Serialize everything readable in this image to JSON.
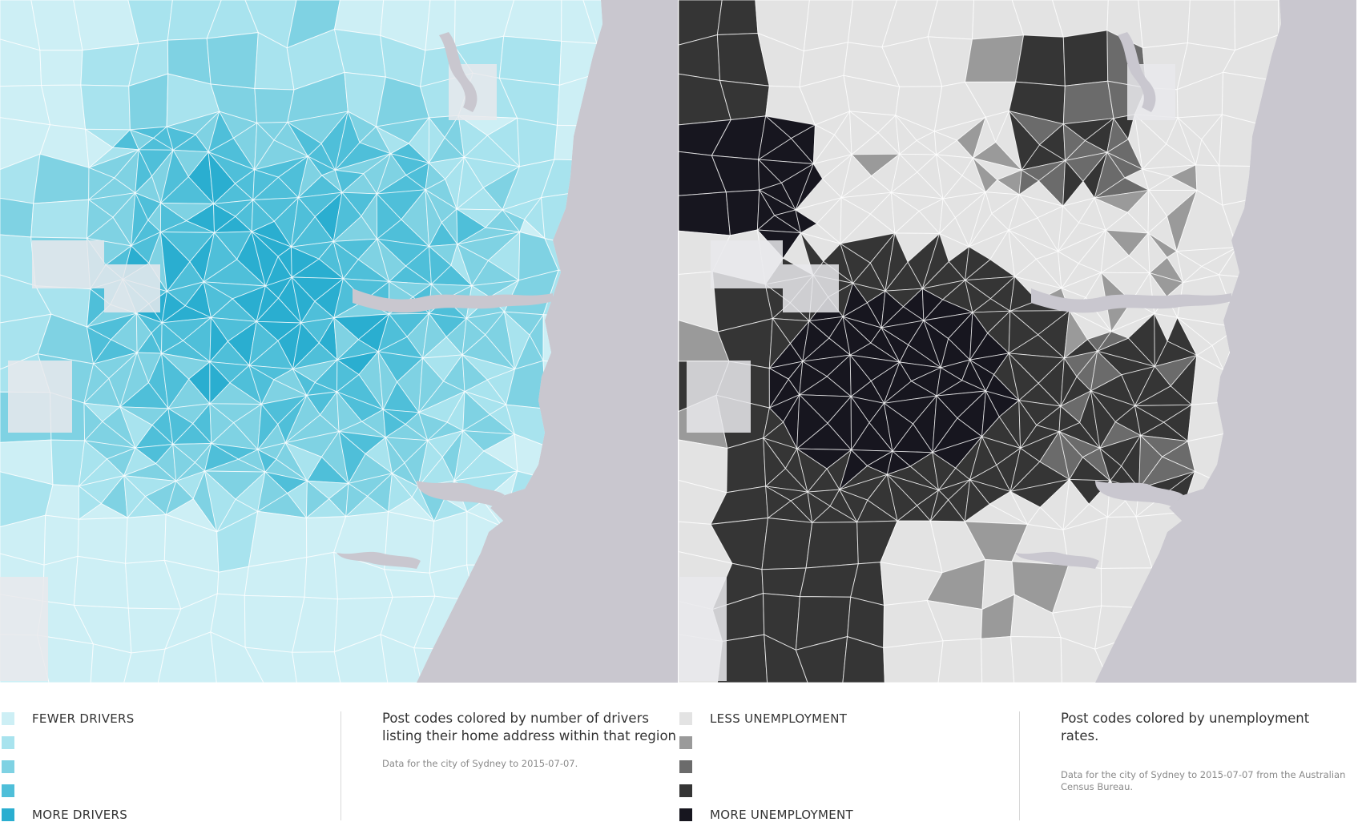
{
  "colors": {
    "land": "#e9e9ec",
    "water": "#c9c7cf",
    "boundary": "#ffffff",
    "drivers_scale": [
      "#cdeff5",
      "#a8e3ee",
      "#7fd2e3",
      "#4fbfd9",
      "#2aaed0"
    ],
    "unemployment_scale": [
      "#e3e3e3",
      "#9a9a9a",
      "#6b6b6b",
      "#353535",
      "#17161f"
    ]
  },
  "panels": [
    {
      "id": "drivers",
      "legend": {
        "labels": [
          "FEWER DRIVERS",
          "",
          "",
          "",
          "MORE DRIVERS"
        ]
      },
      "caption": {
        "main": "Post codes colored by number of drivers listing their home address within that region",
        "note": "Data for the city of Sydney to 2015-07-07."
      }
    },
    {
      "id": "unemployment",
      "legend": {
        "labels": [
          "LESS UNEMPLOYMENT",
          "",
          "",
          "",
          "MORE UNEMPLOYMENT"
        ]
      },
      "caption": {
        "main": "Post codes colored by unemployment rates.",
        "note": "Data for the city of Sydney to 2015-07-07 from the Australian Census Bureau."
      }
    }
  ]
}
